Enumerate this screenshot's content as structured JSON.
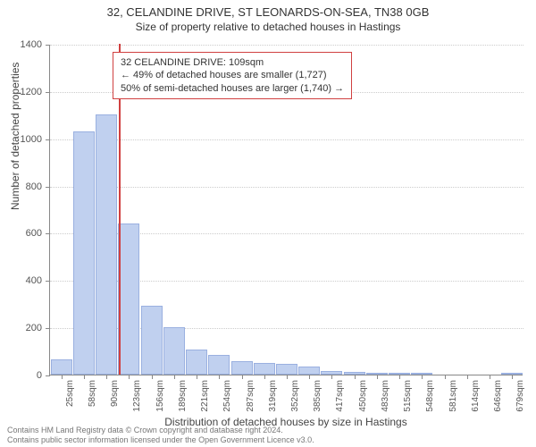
{
  "title": "32, CELANDINE DRIVE, ST LEONARDS-ON-SEA, TN38 0GB",
  "subtitle": "Size of property relative to detached houses in Hastings",
  "yaxis": {
    "label": "Number of detached properties",
    "ylim": [
      0,
      1400
    ],
    "ticks": [
      0,
      200,
      400,
      600,
      800,
      1000,
      1200,
      1400
    ]
  },
  "xaxis": {
    "label": "Distribution of detached houses by size in Hastings",
    "tick_labels": [
      "25sqm",
      "58sqm",
      "90sqm",
      "123sqm",
      "156sqm",
      "189sqm",
      "221sqm",
      "254sqm",
      "287sqm",
      "319sqm",
      "352sqm",
      "385sqm",
      "417sqm",
      "450sqm",
      "483sqm",
      "515sqm",
      "548sqm",
      "581sqm",
      "614sqm",
      "646sqm",
      "679sqm"
    ]
  },
  "bars": {
    "values": [
      65,
      1030,
      1100,
      640,
      290,
      200,
      105,
      85,
      55,
      50,
      45,
      35,
      15,
      10,
      5,
      5,
      5,
      0,
      0,
      0,
      5
    ],
    "color": "#c0d0ef",
    "border_color": "#9ab0e0",
    "width_frac": 0.95
  },
  "marker": {
    "x_value": 109,
    "color": "#d04040"
  },
  "annotation": {
    "line1": "32 CELANDINE DRIVE: 109sqm",
    "line2": "← 49% of detached houses are smaller (1,727)",
    "line3": "50% of semi-detached houses are larger (1,740) →",
    "border_color": "#d04040"
  },
  "footer": {
    "line1": "Contains HM Land Registry data © Crown copyright and database right 2024.",
    "line2": "Contains public sector information licensed under the Open Government Licence v3.0."
  },
  "chart": {
    "background_color": "#ffffff",
    "grid_color": "#cccccc",
    "axis_color": "#888888",
    "text_color": "#444444"
  }
}
